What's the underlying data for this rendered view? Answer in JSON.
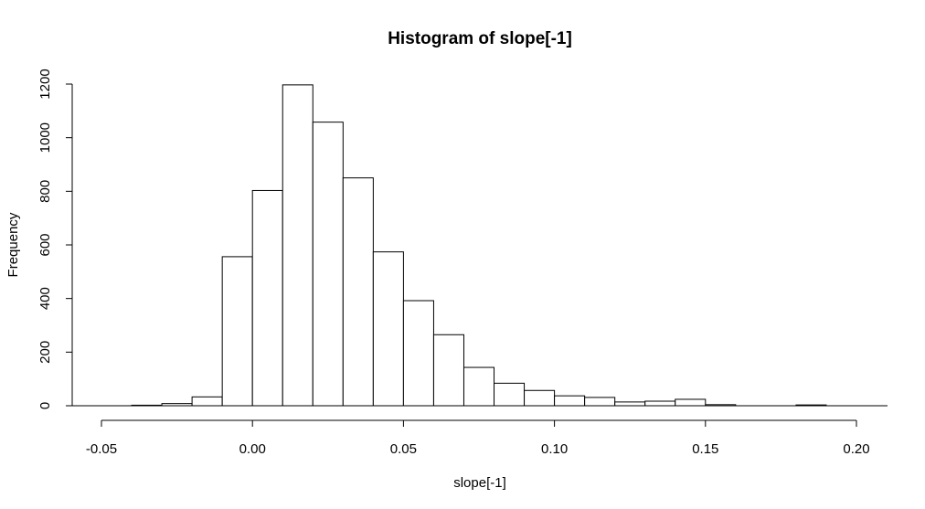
{
  "chart_data": {
    "type": "bar",
    "title": "Histogram of slope[-1]",
    "xlabel": "slope[-1]",
    "ylabel": "Frequency",
    "xlim": [
      -0.05,
      0.2
    ],
    "ylim": [
      0,
      1200
    ],
    "x_ticks": [
      "-0.05",
      "0.00",
      "0.05",
      "0.10",
      "0.15",
      "0.20"
    ],
    "x_tick_values": [
      -0.05,
      0.0,
      0.05,
      0.1,
      0.15,
      0.2
    ],
    "y_ticks": [
      "0",
      "200",
      "400",
      "600",
      "800",
      "1000",
      "1200"
    ],
    "y_tick_values": [
      0,
      200,
      400,
      600,
      800,
      1000,
      1200
    ],
    "bins": [
      {
        "start": -0.04,
        "end": -0.03,
        "count": 2
      },
      {
        "start": -0.03,
        "end": -0.02,
        "count": 8
      },
      {
        "start": -0.02,
        "end": -0.01,
        "count": 33
      },
      {
        "start": -0.01,
        "end": 0.0,
        "count": 556
      },
      {
        "start": 0.0,
        "end": 0.01,
        "count": 803
      },
      {
        "start": 0.01,
        "end": 0.02,
        "count": 1197
      },
      {
        "start": 0.02,
        "end": 0.03,
        "count": 1058
      },
      {
        "start": 0.03,
        "end": 0.04,
        "count": 850
      },
      {
        "start": 0.04,
        "end": 0.05,
        "count": 574
      },
      {
        "start": 0.05,
        "end": 0.06,
        "count": 392
      },
      {
        "start": 0.06,
        "end": 0.07,
        "count": 265
      },
      {
        "start": 0.07,
        "end": 0.08,
        "count": 143
      },
      {
        "start": 0.08,
        "end": 0.09,
        "count": 84
      },
      {
        "start": 0.09,
        "end": 0.1,
        "count": 57
      },
      {
        "start": 0.1,
        "end": 0.11,
        "count": 37
      },
      {
        "start": 0.11,
        "end": 0.12,
        "count": 31
      },
      {
        "start": 0.12,
        "end": 0.13,
        "count": 14
      },
      {
        "start": 0.13,
        "end": 0.14,
        "count": 17
      },
      {
        "start": 0.14,
        "end": 0.15,
        "count": 24
      },
      {
        "start": 0.15,
        "end": 0.16,
        "count": 4
      },
      {
        "start": 0.16,
        "end": 0.17,
        "count": 0
      },
      {
        "start": 0.17,
        "end": 0.18,
        "count": 0
      },
      {
        "start": 0.18,
        "end": 0.19,
        "count": 3
      },
      {
        "start": 0.19,
        "end": 0.2,
        "count": 0
      }
    ],
    "grid": false,
    "bar_fill": "#ffffff",
    "bar_stroke": "#000000"
  }
}
